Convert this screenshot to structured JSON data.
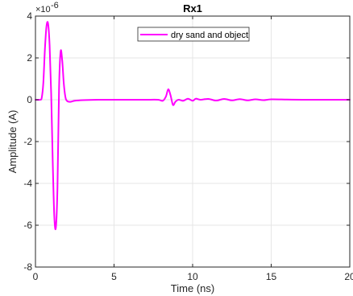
{
  "chart_data": {
    "type": "line",
    "title": "Rx1",
    "xlabel": "Time (ns)",
    "ylabel": "Amplitude (A)",
    "y_exponent_prefix": "×10",
    "y_exponent_power": "-6",
    "xlim": [
      0,
      20
    ],
    "ylim": [
      -8,
      4
    ],
    "xticks": [
      0,
      5,
      10,
      15,
      20
    ],
    "xtick_labels": [
      "0",
      "5",
      "10",
      "15",
      "20"
    ],
    "yticks": [
      -8,
      -6,
      -4,
      -2,
      0,
      2,
      4
    ],
    "ytick_labels": [
      "-8",
      "-6",
      "-4",
      "-2",
      "0",
      "2",
      "4"
    ],
    "grid": true,
    "legend_position": "top-center",
    "series": [
      {
        "name": "dry sand and object",
        "color": "#ff00ff",
        "x": [
          0,
          0.3,
          0.4,
          0.5,
          0.6,
          0.7,
          0.8,
          0.9,
          1.0,
          1.1,
          1.2,
          1.3,
          1.4,
          1.5,
          1.6,
          1.7,
          1.8,
          1.9,
          2.0,
          2.2,
          2.5,
          3.0,
          4.0,
          5.0,
          6.0,
          7.0,
          7.8,
          8.1,
          8.3,
          8.45,
          8.6,
          8.75,
          8.9,
          9.1,
          9.4,
          9.7,
          10.0,
          10.2,
          10.5,
          11.0,
          11.5,
          12.0,
          12.5,
          13.0,
          13.5,
          14.0,
          14.5,
          15.0,
          16.0,
          17.0,
          18.0,
          19.0,
          20.0
        ],
        "values": [
          0,
          0,
          0.1,
          0.8,
          2.4,
          3.5,
          3.65,
          2.6,
          0.3,
          -3.0,
          -5.6,
          -6.1,
          -4.2,
          0.5,
          2.3,
          1.9,
          0.8,
          0.15,
          -0.05,
          -0.1,
          -0.05,
          -0.02,
          0,
          0,
          0,
          0,
          0,
          -0.05,
          0.15,
          0.5,
          0.2,
          -0.25,
          -0.1,
          0,
          -0.05,
          0.05,
          -0.05,
          0.05,
          0,
          0.04,
          -0.04,
          0.04,
          -0.03,
          0.03,
          -0.03,
          0.02,
          -0.02,
          0.02,
          0.01,
          0,
          0,
          0,
          0
        ]
      }
    ]
  }
}
